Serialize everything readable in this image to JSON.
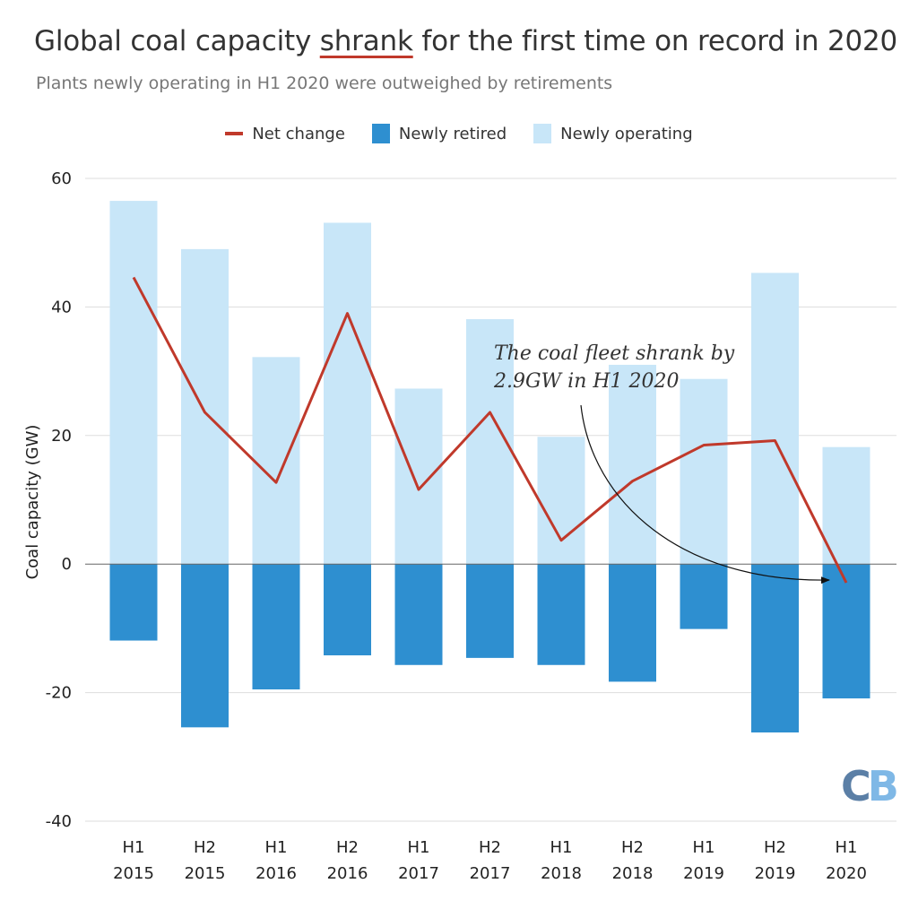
{
  "header": {
    "title_pre": "Global coal capacity ",
    "title_highlight": "shrank",
    "title_post": " for the first time on record in 2020",
    "subtitle": "Plants newly operating in H1 2020 were outweighed by retirements"
  },
  "legend": {
    "items": [
      {
        "label": "Net change",
        "swatch": "line",
        "color": "#c0392b"
      },
      {
        "label": "Newly retired",
        "swatch": "box",
        "color": "#2e8fd0"
      },
      {
        "label": "Newly operating",
        "swatch": "box",
        "color": "#c8e6f8"
      }
    ]
  },
  "annotation": {
    "line1": "The coal fleet shrank by",
    "line2": "2.9GW in H1 2020"
  },
  "logo": {
    "c": "C",
    "b": "B"
  },
  "chart_data": {
    "type": "bar",
    "ylabel": "Coal capacity (GW)",
    "ylim": [
      -40,
      60
    ],
    "yticks": [
      60,
      40,
      20,
      0,
      -20,
      -40
    ],
    "grid": true,
    "legend_position": "top",
    "categories": [
      [
        "H1",
        "2015"
      ],
      [
        "H2",
        "2015"
      ],
      [
        "H1",
        "2016"
      ],
      [
        "H2",
        "2016"
      ],
      [
        "H1",
        "2017"
      ],
      [
        "H2",
        "2017"
      ],
      [
        "H1",
        "2018"
      ],
      [
        "H2",
        "2018"
      ],
      [
        "H1",
        "2019"
      ],
      [
        "H2",
        "2019"
      ],
      [
        "H1",
        "2020"
      ]
    ],
    "series": [
      {
        "name": "Newly operating",
        "type": "bar",
        "color": "#c8e6f8",
        "values": [
          56.5,
          49.0,
          32.2,
          53.1,
          27.3,
          38.1,
          19.8,
          31.0,
          28.8,
          45.3,
          18.2
        ]
      },
      {
        "name": "Newly retired",
        "type": "bar",
        "color": "#2e8fd0",
        "values": [
          -11.9,
          -25.4,
          -19.5,
          -14.2,
          -15.7,
          -14.6,
          -15.7,
          -18.3,
          -10.1,
          -26.2,
          -20.9
        ]
      },
      {
        "name": "Net change",
        "type": "line",
        "color": "#c0392b",
        "values": [
          44.6,
          23.6,
          12.7,
          39.0,
          11.6,
          23.6,
          3.7,
          12.9,
          18.5,
          19.2,
          -2.9
        ]
      }
    ]
  }
}
